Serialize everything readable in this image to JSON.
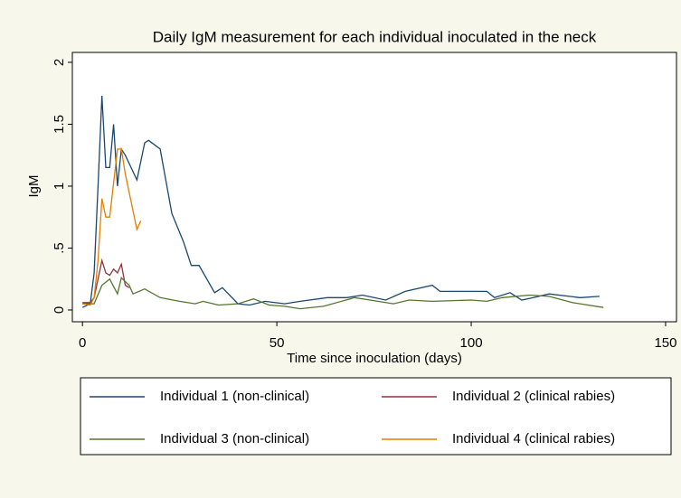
{
  "chart_data": {
    "type": "line",
    "title": "Daily IgM measurement for each individual inoculated in the neck",
    "xlabel": "Time since inoculation (days)",
    "ylabel": "IgM",
    "xlim": [
      -2.6,
      152.8
    ],
    "ylim": [
      -0.095,
      2.08
    ],
    "xticks": [
      0,
      50,
      100,
      150
    ],
    "yticks": [
      0,
      {
        "value": 0.5,
        "label": ".5"
      },
      1,
      1.5,
      2
    ],
    "series": [
      {
        "name": "Individual 1 (non-clinical)",
        "color": "#1a476f",
        "x": [
          0,
          2,
          3,
          4,
          5,
          6,
          7,
          8,
          9,
          10,
          11,
          14,
          16,
          17,
          20,
          23,
          26,
          28,
          30,
          34,
          36,
          40,
          43,
          47,
          52,
          56,
          63,
          68,
          72,
          78,
          83,
          90,
          92,
          97,
          104,
          106,
          110,
          113,
          116,
          120,
          128,
          133
        ],
        "values": [
          0.02,
          0.05,
          0.3,
          1.0,
          1.73,
          1.15,
          1.15,
          1.5,
          1.0,
          1.3,
          1.25,
          1.05,
          1.35,
          1.37,
          1.3,
          0.78,
          0.55,
          0.36,
          0.36,
          0.14,
          0.18,
          0.05,
          0.04,
          0.07,
          0.05,
          0.07,
          0.1,
          0.1,
          0.12,
          0.08,
          0.15,
          0.2,
          0.15,
          0.15,
          0.15,
          0.1,
          0.14,
          0.08,
          0.1,
          0.13,
          0.1,
          0.11
        ]
      },
      {
        "name": "Individual 2 (clinical rabies)",
        "color": "#90353b",
        "x": [
          0,
          2,
          3,
          5,
          6,
          7,
          8,
          9,
          10,
          11,
          12
        ],
        "values": [
          0.06,
          0.06,
          0.1,
          0.4,
          0.3,
          0.28,
          0.33,
          0.3,
          0.37,
          0.2,
          0.18
        ]
      },
      {
        "name": "Individual 3 (non-clinical)",
        "color": "#55752f",
        "x": [
          0,
          3,
          5,
          7,
          9,
          10,
          12,
          13,
          16,
          20,
          25,
          29,
          31,
          35,
          40,
          44,
          48,
          52,
          56,
          62,
          70,
          76,
          80,
          84,
          90,
          100,
          104,
          108,
          115,
          120,
          126,
          134
        ],
        "values": [
          0.05,
          0.05,
          0.2,
          0.25,
          0.13,
          0.26,
          0.2,
          0.13,
          0.17,
          0.1,
          0.07,
          0.05,
          0.07,
          0.04,
          0.05,
          0.09,
          0.04,
          0.03,
          0.01,
          0.03,
          0.1,
          0.07,
          0.05,
          0.08,
          0.07,
          0.08,
          0.07,
          0.1,
          0.12,
          0.11,
          0.06,
          0.02
        ]
      },
      {
        "name": "Individual 4 (clinical rabies)",
        "color": "#e37e00",
        "x": [
          0,
          2,
          3,
          4,
          5,
          6,
          7,
          9,
          10,
          11,
          12,
          14,
          15
        ],
        "values": [
          0.05,
          0.04,
          0.1,
          0.4,
          0.9,
          0.75,
          0.75,
          1.3,
          1.3,
          1.1,
          0.95,
          0.65,
          0.72
        ]
      }
    ]
  }
}
